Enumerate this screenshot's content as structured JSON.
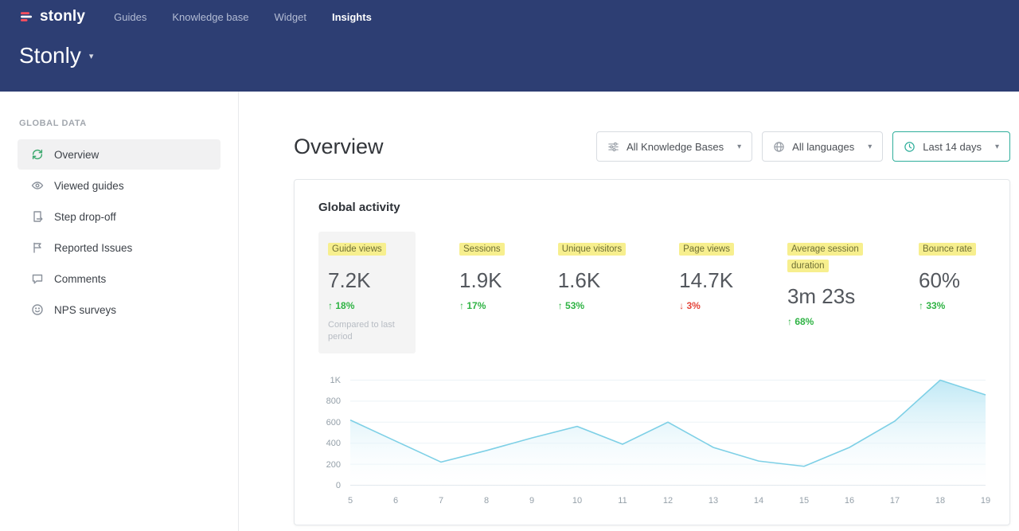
{
  "topnav": {
    "brand": "stonly",
    "items": [
      {
        "label": "Guides"
      },
      {
        "label": "Knowledge base"
      },
      {
        "label": "Widget"
      },
      {
        "label": "Insights"
      }
    ]
  },
  "header": {
    "workspace": "Stonly"
  },
  "icons": {
    "caret_down": "▾",
    "arrow_up": "↑",
    "arrow_down": "↓"
  },
  "sidebar": {
    "section": "GLOBAL DATA",
    "items": [
      {
        "label": "Overview"
      },
      {
        "label": "Viewed guides"
      },
      {
        "label": "Step drop-off"
      },
      {
        "label": "Reported Issues"
      },
      {
        "label": "Comments"
      },
      {
        "label": "NPS surveys"
      }
    ]
  },
  "main": {
    "title": "Overview",
    "filters": {
      "knowledge_base": "All Knowledge Bases",
      "language": "All languages",
      "date_range": "Last 14 days"
    },
    "card": {
      "title": "Global activity",
      "metrics": [
        {
          "label": "Guide views",
          "value": "7.2K",
          "delta": "18%",
          "direction": "up",
          "note": "Compared to last period",
          "selected": true
        },
        {
          "label": "Sessions",
          "value": "1.9K",
          "delta": "17%",
          "direction": "up"
        },
        {
          "label": "Unique visitors",
          "value": "1.6K",
          "delta": "53%",
          "direction": "up"
        },
        {
          "label": "Page views",
          "value": "14.7K",
          "delta": "3%",
          "direction": "down"
        },
        {
          "label": "Average session duration",
          "value": "3m 23s",
          "delta": "68%",
          "direction": "up"
        },
        {
          "label": "Bounce rate",
          "value": "60%",
          "delta": "33%",
          "direction": "up"
        }
      ]
    }
  },
  "chart_data": {
    "type": "area",
    "title": "Global activity",
    "x": [
      5,
      6,
      7,
      8,
      9,
      10,
      11,
      12,
      13,
      14,
      15,
      16,
      17,
      18,
      19
    ],
    "series": [
      {
        "name": "Guide views",
        "values": [
          620,
          420,
          220,
          330,
          450,
          560,
          390,
          600,
          360,
          230,
          180,
          360,
          610,
          1000,
          860
        ]
      }
    ],
    "ylim": [
      0,
      1000
    ],
    "yticks": [
      {
        "v": 0,
        "label": "0"
      },
      {
        "v": 200,
        "label": "200"
      },
      {
        "v": 400,
        "label": "400"
      },
      {
        "v": 600,
        "label": "600"
      },
      {
        "v": 800,
        "label": "800"
      },
      {
        "v": 1000,
        "label": "1K"
      }
    ],
    "grid": true,
    "legend": "none",
    "line_color": "#7ed0e6",
    "fill_top": "#b9e6f4",
    "fill_bottom": "#ffffff"
  },
  "colors": {
    "header_bg": "#2d3e73",
    "accent_teal": "#2fae9b",
    "highlight_yellow": "#f7ef8e",
    "positive": "#2fb344",
    "negative": "#e4453a",
    "grid_line": "#ecf3f7",
    "axis_line": "#dfe7ec"
  }
}
